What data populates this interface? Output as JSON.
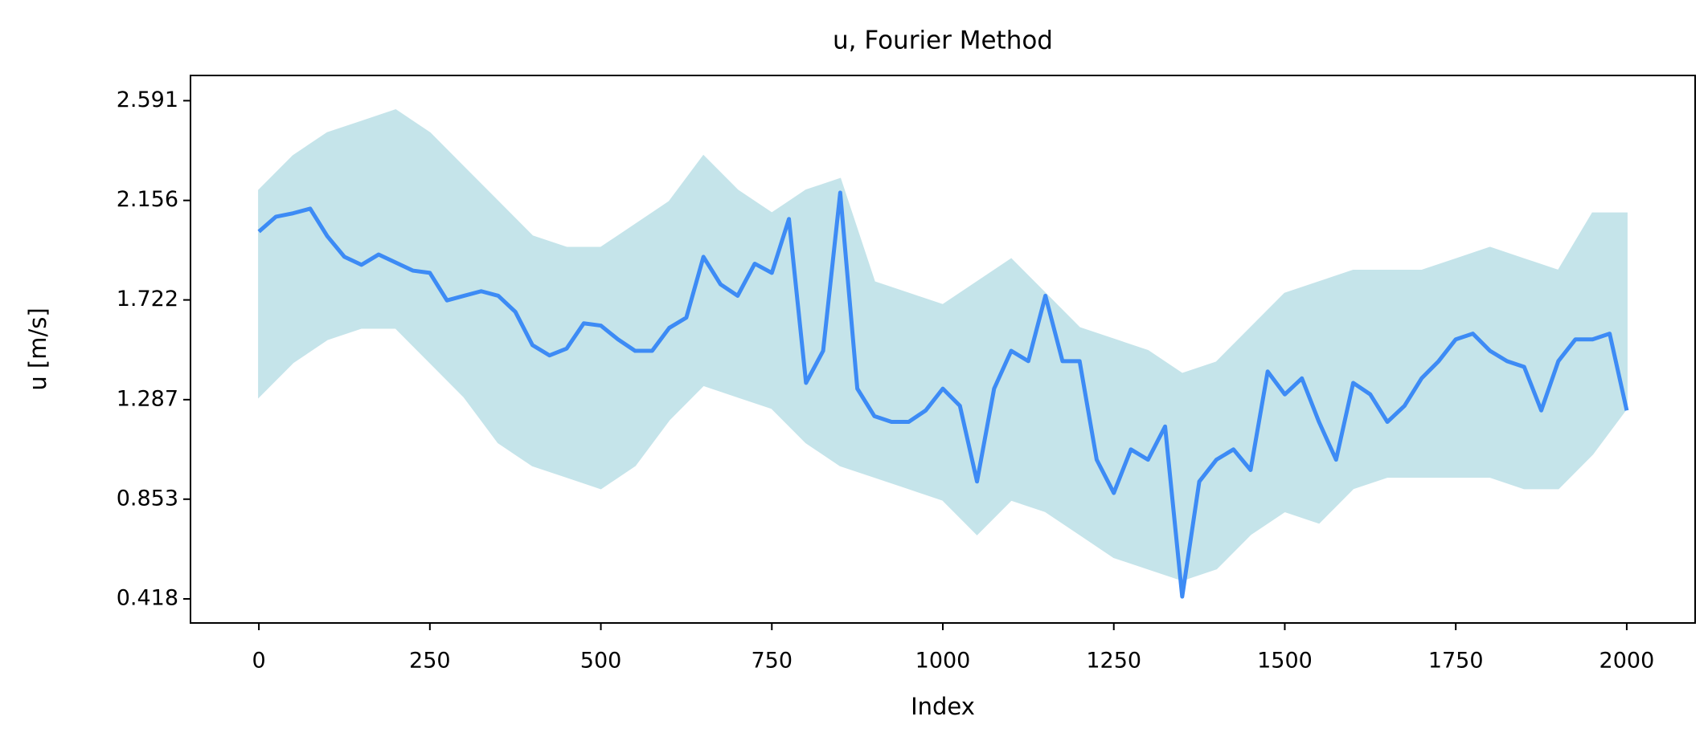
{
  "chart_data": {
    "type": "line",
    "title": "u, Fourier Method",
    "x_label": "Index",
    "y_label": "u [m/s]",
    "xlim": [
      -100,
      2100
    ],
    "xticks": [
      0,
      250,
      500,
      750,
      1000,
      1250,
      1500,
      1750,
      2000
    ],
    "ylim": [
      0.313,
      2.701
    ],
    "yticks": [
      0.418,
      0.853,
      1.287,
      1.722,
      2.156,
      2.591
    ],
    "grid": false,
    "band": {
      "color": "#c5e4ea",
      "x": [
        0,
        50,
        100,
        150,
        200,
        250,
        300,
        350,
        400,
        450,
        500,
        550,
        600,
        650,
        700,
        750,
        800,
        850,
        900,
        950,
        1000,
        1050,
        1100,
        1150,
        1200,
        1250,
        1300,
        1350,
        1400,
        1450,
        1500,
        1550,
        1600,
        1650,
        1700,
        1750,
        1800,
        1850,
        1900,
        1950,
        2000
      ],
      "upper": [
        2.2,
        2.35,
        2.45,
        2.5,
        2.55,
        2.45,
        2.3,
        2.15,
        2.0,
        1.95,
        1.95,
        2.05,
        2.15,
        2.35,
        2.2,
        2.1,
        2.2,
        2.25,
        1.8,
        1.75,
        1.7,
        1.8,
        1.9,
        1.75,
        1.6,
        1.55,
        1.5,
        1.4,
        1.45,
        1.6,
        1.75,
        1.8,
        1.85,
        1.85,
        1.85,
        1.9,
        1.95,
        1.9,
        1.85,
        2.1,
        2.1
      ],
      "lower": [
        1.3,
        1.45,
        1.55,
        1.6,
        1.6,
        1.45,
        1.3,
        1.1,
        1.0,
        0.95,
        0.9,
        1.0,
        1.2,
        1.35,
        1.3,
        1.25,
        1.1,
        1.0,
        0.95,
        0.9,
        0.85,
        0.7,
        0.85,
        0.8,
        0.7,
        0.6,
        0.55,
        0.5,
        0.55,
        0.7,
        0.8,
        0.75,
        0.9,
        0.95,
        0.95,
        0.95,
        0.95,
        0.9,
        0.9,
        1.05,
        1.25
      ]
    },
    "x": [
      0,
      25,
      50,
      75,
      100,
      125,
      150,
      175,
      200,
      225,
      250,
      275,
      300,
      325,
      350,
      375,
      400,
      425,
      450,
      475,
      500,
      525,
      550,
      575,
      600,
      625,
      650,
      675,
      700,
      725,
      750,
      775,
      800,
      825,
      850,
      875,
      900,
      925,
      950,
      975,
      1000,
      1025,
      1050,
      1075,
      1100,
      1125,
      1150,
      1175,
      1200,
      1225,
      1250,
      1275,
      1300,
      1325,
      1350,
      1375,
      1400,
      1425,
      1450,
      1475,
      1500,
      1525,
      1550,
      1575,
      1600,
      1625,
      1650,
      1675,
      1700,
      1725,
      1750,
      1775,
      1800,
      1825,
      1850,
      1875,
      1900,
      1925,
      1950,
      1975,
      2000
    ],
    "series": [
      {
        "color": "#3d8bf5",
        "values": [
          2.02,
          2.085,
          2.1,
          2.12,
          2.0,
          1.91,
          1.875,
          1.92,
          1.885,
          1.85,
          1.84,
          1.72,
          1.74,
          1.76,
          1.74,
          1.67,
          1.525,
          1.48,
          1.51,
          1.62,
          1.61,
          1.55,
          1.5,
          1.5,
          1.6,
          1.645,
          1.91,
          1.79,
          1.74,
          1.88,
          1.84,
          2.075,
          1.36,
          1.5,
          2.19,
          1.335,
          1.215,
          1.19,
          1.19,
          1.24,
          1.335,
          1.26,
          0.93,
          1.335,
          1.5,
          1.455,
          1.74,
          1.455,
          1.455,
          1.025,
          0.88,
          1.07,
          1.025,
          1.17,
          0.428,
          0.93,
          1.025,
          1.07,
          0.98,
          1.41,
          1.31,
          1.38,
          1.19,
          1.025,
          1.36,
          1.31,
          1.19,
          1.26,
          1.38,
          1.455,
          1.55,
          1.575,
          1.5,
          1.455,
          1.43,
          1.24,
          1.455,
          1.55,
          1.55,
          1.575,
          1.24
        ]
      }
    ]
  }
}
